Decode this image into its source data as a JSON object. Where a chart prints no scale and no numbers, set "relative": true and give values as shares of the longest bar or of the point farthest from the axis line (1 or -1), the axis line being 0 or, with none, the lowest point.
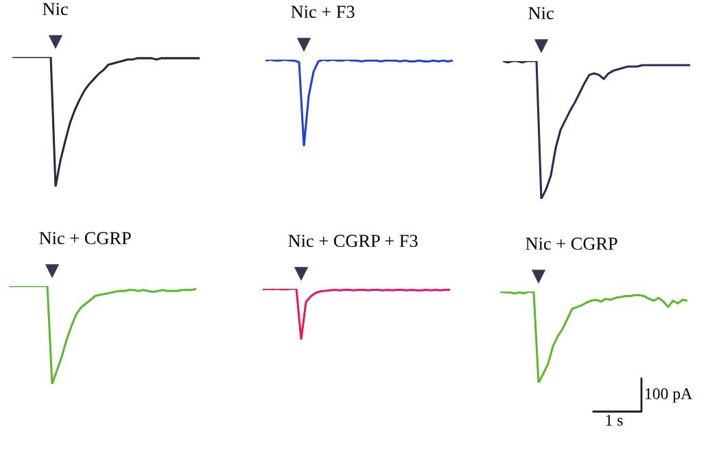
{
  "chart_data": [
    {
      "type": "line",
      "title": "Nic",
      "relative": true,
      "categories": [
        null,
        null,
        null,
        null,
        null,
        null,
        null,
        null,
        null,
        null,
        null,
        null,
        null,
        null,
        null,
        null,
        null,
        null,
        null,
        null,
        null,
        null,
        null,
        null,
        null,
        null,
        null,
        null,
        null,
        null,
        null,
        null,
        null,
        null,
        null,
        null,
        null,
        null,
        null,
        null
      ],
      "series": [
        {
          "color": "#2a2640",
          "values": [
            1,
            1,
            1,
            1,
            1,
            1,
            1,
            1,
            1,
            0,
            0.2,
            0.35,
            0.49,
            0.59,
            0.67,
            0.74,
            0.79,
            0.83,
            0.87,
            0.9,
            0.94,
            0.95,
            0.96,
            0.97,
            0.98,
            0.98,
            0.99,
            0.99,
            0.99,
            0.99,
            0.98,
            0.99,
            0.99,
            0.99,
            0.99,
            0.99,
            0.99,
            0.99,
            0.99,
            0.99
          ]
        }
      ]
    },
    {
      "type": "line",
      "title": "Nic + F3",
      "relative": true,
      "categories": [
        null,
        null,
        null,
        null,
        null,
        null,
        null,
        null,
        null,
        null,
        null,
        null,
        null,
        null,
        null,
        null,
        null,
        null,
        null,
        null,
        null,
        null,
        null,
        null,
        null,
        null,
        null,
        null,
        null,
        null,
        null,
        null,
        null,
        null,
        null,
        null,
        null,
        null,
        null,
        null
      ],
      "series": [
        {
          "color": "#1f3fd6",
          "values": [
            0.99,
            1,
            0.99,
            0.99,
            1,
            0.99,
            0.99,
            0.97,
            0,
            0.58,
            0.86,
            0.98,
            1,
            0.99,
            1,
            0.99,
            0.99,
            1,
            0.99,
            0.99,
            0.98,
            0.99,
            0.99,
            0.99,
            0.98,
            0.99,
            0.99,
            0.99,
            0.98,
            0.99,
            0.98,
            0.98,
            0.99,
            0.98,
            0.98,
            0.99,
            0.98,
            0.99,
            0.98,
            0.99
          ]
        }
      ]
    },
    {
      "type": "line",
      "title": "Nic",
      "relative": true,
      "categories": [
        null,
        null,
        null,
        null,
        null,
        null,
        null,
        null,
        null,
        null,
        null,
        null,
        null,
        null,
        null,
        null,
        null,
        null,
        null,
        null,
        null,
        null,
        null,
        null,
        null,
        null,
        null,
        null,
        null,
        null,
        null,
        null,
        null,
        null,
        null,
        null,
        null,
        null,
        null,
        null
      ],
      "series": [
        {
          "color": "#2e2a55",
          "values": [
            1,
            0.99,
            1,
            1,
            0.99,
            1,
            1,
            1,
            0,
            0.07,
            0.17,
            0.37,
            0.5,
            0.57,
            0.64,
            0.7,
            0.77,
            0.84,
            0.9,
            0.91,
            0.9,
            0.87,
            0.91,
            0.93,
            0.94,
            0.95,
            0.96,
            0.96,
            0.96,
            0.97,
            0.97,
            0.97,
            0.97,
            0.97,
            0.97,
            0.97,
            0.97,
            0.97,
            0.97,
            0.97
          ]
        }
      ]
    },
    {
      "type": "line",
      "title": "Nic + CGRP",
      "relative": true,
      "categories": [
        null,
        null,
        null,
        null,
        null,
        null,
        null,
        null,
        null,
        null,
        null,
        null,
        null,
        null,
        null,
        null,
        null,
        null,
        null,
        null,
        null,
        null,
        null,
        null,
        null,
        null,
        null,
        null,
        null,
        null,
        null,
        null,
        null,
        null,
        null,
        null,
        null,
        null,
        null,
        null
      ],
      "series": [
        {
          "color": "#5cb82e",
          "values": [
            1,
            1,
            1,
            1,
            1,
            1,
            1,
            1,
            1,
            0,
            0.14,
            0.28,
            0.45,
            0.59,
            0.71,
            0.78,
            0.82,
            0.86,
            0.9,
            0.91,
            0.92,
            0.93,
            0.94,
            0.95,
            0.95,
            0.96,
            0.96,
            0.95,
            0.96,
            0.95,
            0.94,
            0.95,
            0.96,
            0.95,
            0.95,
            0.95,
            0.96,
            0.96,
            0.96,
            0.97
          ]
        }
      ]
    },
    {
      "type": "line",
      "title": "Nic + CGRP + F3",
      "relative": true,
      "categories": [
        null,
        null,
        null,
        null,
        null,
        null,
        null,
        null,
        null,
        null,
        null,
        null,
        null,
        null,
        null,
        null,
        null,
        null,
        null,
        null,
        null,
        null,
        null,
        null,
        null,
        null,
        null,
        null,
        null,
        null,
        null,
        null,
        null,
        null,
        null,
        null,
        null,
        null,
        null,
        null
      ],
      "series": [
        {
          "color": "#e8185a",
          "values": [
            0.99,
            1,
            0.99,
            1,
            0.99,
            0.99,
            1,
            1,
            0,
            0.74,
            0.85,
            0.92,
            0.95,
            0.96,
            0.97,
            0.98,
            0.97,
            0.98,
            0.98,
            0.97,
            0.98,
            0.98,
            0.97,
            0.98,
            0.98,
            0.97,
            0.98,
            0.97,
            0.98,
            0.98,
            0.97,
            0.98,
            0.97,
            0.97,
            0.98,
            0.97,
            0.98,
            0.97,
            0.98,
            0.98
          ]
        }
      ]
    },
    {
      "type": "line",
      "title": "Nic + CGRP",
      "relative": true,
      "annotations": [
        "100 pA",
        "1 s"
      ],
      "categories": [
        null,
        null,
        null,
        null,
        null,
        null,
        null,
        null,
        null,
        null,
        null,
        null,
        null,
        null,
        null,
        null,
        null,
        null,
        null,
        null,
        null,
        null,
        null,
        null,
        null,
        null,
        null,
        null,
        null,
        null,
        null,
        null,
        null,
        null,
        null,
        null,
        null,
        null,
        null,
        null
      ],
      "series": [
        {
          "color": "#5cb82e",
          "values": [
            1,
            0.99,
            0.99,
            0.98,
            0.99,
            0.98,
            1,
            0.99,
            0,
            0.1,
            0.21,
            0.4,
            0.51,
            0.59,
            0.7,
            0.81,
            0.83,
            0.85,
            0.88,
            0.9,
            0.91,
            0.89,
            0.92,
            0.91,
            0.93,
            0.94,
            0.95,
            0.95,
            0.96,
            0.96,
            0.95,
            0.92,
            0.9,
            0.93,
            0.89,
            0.83,
            0.9,
            0.87,
            0.91,
            0.9
          ]
        }
      ]
    }
  ]
}
